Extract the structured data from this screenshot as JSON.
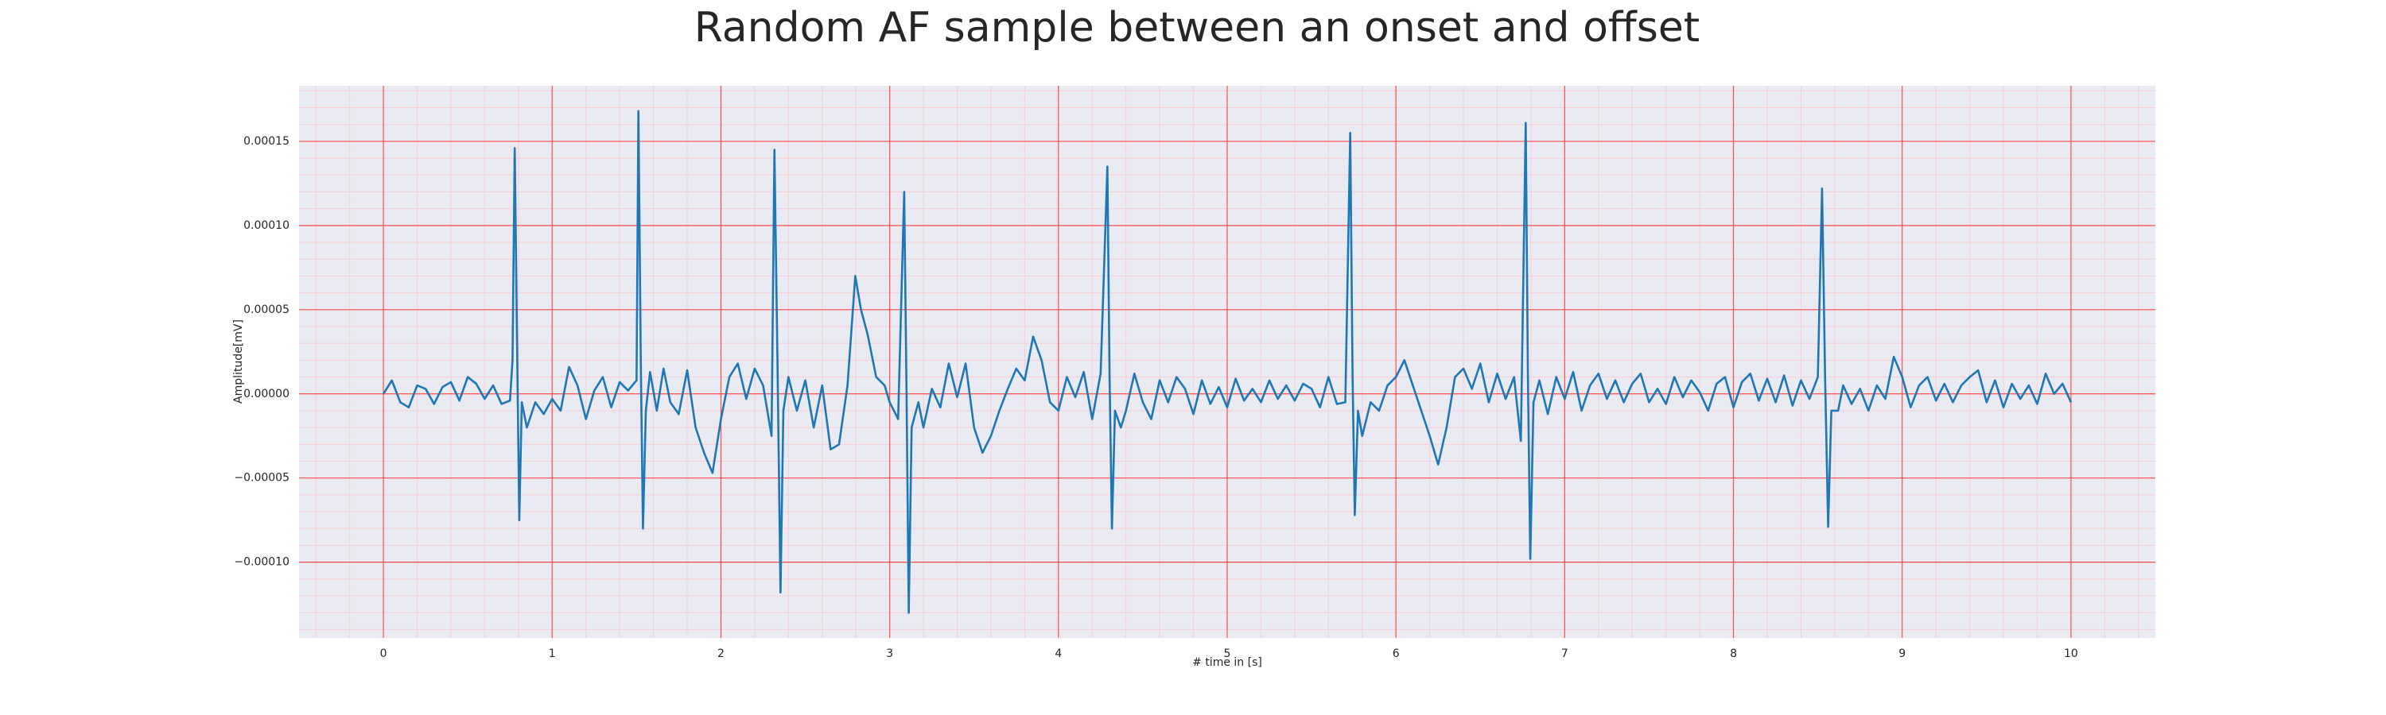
{
  "chart_data": {
    "type": "line",
    "title": "Random AF sample between an onset and offset",
    "xlabel": "# time in [s]",
    "ylabel": "Amplitude[mV]",
    "color": "#1f77b4",
    "grid": true,
    "minor_grid": true,
    "xlim": [
      -0.5,
      10.5
    ],
    "ylim": [
      -0.000145,
      0.000183
    ],
    "xticks": [
      0,
      1,
      2,
      3,
      4,
      5,
      6,
      7,
      8,
      9,
      10
    ],
    "yticks": [
      {
        "value": -0.0001,
        "label": "−0.00010"
      },
      {
        "value": -5e-05,
        "label": "−0.00005"
      },
      {
        "value": 0,
        "label": "0.00000"
      },
      {
        "value": 5e-05,
        "label": "0.00005"
      },
      {
        "value": 0.0001,
        "label": "0.00010"
      },
      {
        "value": 0.00015,
        "label": "0.00015"
      }
    ],
    "x": [
      0,
      0.05,
      0.1,
      0.15,
      0.2,
      0.25,
      0.3,
      0.35,
      0.4,
      0.45,
      0.5,
      0.55,
      0.6,
      0.65,
      0.7,
      0.75,
      0.765,
      0.778,
      0.792,
      0.805,
      0.82,
      0.85,
      0.9,
      0.95,
      1.0,
      1.05,
      1.1,
      1.15,
      1.2,
      1.25,
      1.3,
      1.35,
      1.4,
      1.45,
      1.5,
      1.511,
      1.525,
      1.538,
      1.555,
      1.58,
      1.62,
      1.66,
      1.7,
      1.75,
      1.8,
      1.85,
      1.9,
      1.95,
      2.0,
      2.05,
      2.1,
      2.15,
      2.2,
      2.25,
      2.3,
      2.317,
      2.335,
      2.353,
      2.37,
      2.4,
      2.45,
      2.5,
      2.55,
      2.6,
      2.65,
      2.7,
      2.75,
      2.796,
      2.83,
      2.87,
      2.92,
      2.97,
      3.0,
      3.05,
      3.086,
      3.1,
      3.113,
      3.13,
      3.17,
      3.2,
      3.25,
      3.3,
      3.35,
      3.4,
      3.45,
      3.5,
      3.55,
      3.6,
      3.65,
      3.7,
      3.75,
      3.8,
      3.85,
      3.9,
      3.95,
      4.0,
      4.05,
      4.1,
      4.15,
      4.2,
      4.25,
      4.29,
      4.303,
      4.317,
      4.335,
      4.37,
      4.4,
      4.45,
      4.5,
      4.55,
      4.6,
      4.65,
      4.7,
      4.75,
      4.8,
      4.85,
      4.9,
      4.95,
      5.0,
      5.05,
      5.1,
      5.15,
      5.2,
      5.25,
      5.3,
      5.35,
      5.4,
      5.45,
      5.5,
      5.55,
      5.6,
      5.65,
      5.7,
      5.729,
      5.743,
      5.756,
      5.775,
      5.8,
      5.85,
      5.9,
      5.95,
      6.0,
      6.05,
      6.1,
      6.15,
      6.2,
      6.25,
      6.3,
      6.35,
      6.4,
      6.45,
      6.5,
      6.55,
      6.6,
      6.65,
      6.7,
      6.74,
      6.769,
      6.782,
      6.796,
      6.815,
      6.85,
      6.9,
      6.95,
      7.0,
      7.05,
      7.1,
      7.15,
      7.2,
      7.25,
      7.3,
      7.35,
      7.4,
      7.45,
      7.5,
      7.55,
      7.6,
      7.65,
      7.7,
      7.75,
      7.8,
      7.85,
      7.9,
      7.95,
      8.0,
      8.05,
      8.1,
      8.15,
      8.2,
      8.25,
      8.3,
      8.35,
      8.4,
      8.45,
      8.5,
      8.525,
      8.543,
      8.561,
      8.58,
      8.62,
      8.65,
      8.7,
      8.75,
      8.8,
      8.85,
      8.9,
      8.95,
      9.0,
      9.05,
      9.1,
      9.15,
      9.2,
      9.25,
      9.3,
      9.35,
      9.4,
      9.45,
      9.5,
      9.55,
      9.6,
      9.65,
      9.7,
      9.75,
      9.8,
      9.85,
      9.9,
      9.95,
      10.0
    ],
    "values": [
      0,
      8e-06,
      -5e-06,
      -8e-06,
      5e-06,
      3e-06,
      -6e-06,
      4e-06,
      7e-06,
      -4e-06,
      1e-05,
      6e-06,
      -3e-06,
      5e-06,
      -6e-06,
      -4e-06,
      2e-05,
      0.000146,
      3e-05,
      -7.5e-05,
      -5e-06,
      -2e-05,
      -5e-06,
      -1.2e-05,
      -3e-06,
      -1e-05,
      1.6e-05,
      5e-06,
      -1.5e-05,
      2e-06,
      1e-05,
      -8e-06,
      7e-06,
      2e-06,
      8e-06,
      0.000168,
      2e-05,
      -8e-05,
      -1e-05,
      1.3e-05,
      -1e-05,
      1.5e-05,
      -5e-06,
      -1.2e-05,
      1.4e-05,
      -2e-05,
      -3.5e-05,
      -4.7e-05,
      -1.5e-05,
      1e-05,
      1.8e-05,
      -3e-06,
      1.5e-05,
      5e-06,
      -2.5e-05,
      0.000145,
      2e-05,
      -0.000118,
      -1e-05,
      1e-05,
      -1e-05,
      8e-06,
      -2e-05,
      5e-06,
      -3.3e-05,
      -3e-05,
      5e-06,
      7e-05,
      5e-05,
      3.5e-05,
      1e-05,
      5e-06,
      -5e-06,
      -1.5e-05,
      0.00012,
      0,
      -0.00013,
      -2e-05,
      -5e-06,
      -2e-05,
      3e-06,
      -8e-06,
      1.8e-05,
      -2e-06,
      1.8e-05,
      -2e-05,
      -3.5e-05,
      -2.5e-05,
      -1e-05,
      3e-06,
      1.5e-05,
      8e-06,
      3.4e-05,
      2e-05,
      -5e-06,
      -1e-05,
      1e-05,
      -2e-06,
      1.3e-05,
      -1.5e-05,
      1.2e-05,
      0.000135,
      1e-05,
      -8e-05,
      -1e-05,
      -2e-05,
      -1e-05,
      1.2e-05,
      -5e-06,
      -1.5e-05,
      8e-06,
      -5e-06,
      1e-05,
      3e-06,
      -1.2e-05,
      8e-06,
      -6e-06,
      4e-06,
      -8e-06,
      9e-06,
      -4e-06,
      3e-06,
      -5e-06,
      8e-06,
      -3e-06,
      5e-06,
      -4e-06,
      6e-06,
      3e-06,
      -8e-06,
      1e-05,
      -6e-06,
      -5e-06,
      0.000155,
      1e-05,
      -7.2e-05,
      -1e-05,
      -2.5e-05,
      -5e-06,
      -1e-05,
      5e-06,
      1e-05,
      2e-05,
      5e-06,
      -1e-05,
      -2.5e-05,
      -4.2e-05,
      -2e-05,
      1e-05,
      1.5e-05,
      3e-06,
      1.8e-05,
      -5e-06,
      1.2e-05,
      -3e-06,
      1e-05,
      -2.8e-05,
      0.000161,
      1e-05,
      -9.8e-05,
      -5e-06,
      8e-06,
      -1.2e-05,
      1e-05,
      -3e-06,
      1.3e-05,
      -1e-05,
      5e-06,
      1.2e-05,
      -3e-06,
      8e-06,
      -5e-06,
      6e-06,
      1.2e-05,
      -5e-06,
      3e-06,
      -6e-06,
      1e-05,
      -2e-06,
      8e-06,
      1e-06,
      -1e-05,
      6e-06,
      1e-05,
      -8e-06,
      7e-06,
      1.2e-05,
      -4e-06,
      9e-06,
      -5e-06,
      1.1e-05,
      -7e-06,
      8e-06,
      -3e-06,
      1e-05,
      0.000122,
      1e-05,
      -7.9e-05,
      -1e-05,
      -1e-05,
      5e-06,
      -6e-06,
      3e-06,
      -1e-05,
      5e-06,
      -3e-06,
      2.2e-05,
      1e-05,
      -8e-06,
      5e-06,
      1e-05,
      -4e-06,
      6e-06,
      -5e-06,
      5e-06,
      1e-05,
      1.4e-05,
      -5e-06,
      8e-06,
      -8e-06,
      6e-06,
      -3e-06,
      5e-06,
      -6e-06,
      1.2e-05,
      0.0,
      6e-06,
      -5e-06
    ]
  }
}
